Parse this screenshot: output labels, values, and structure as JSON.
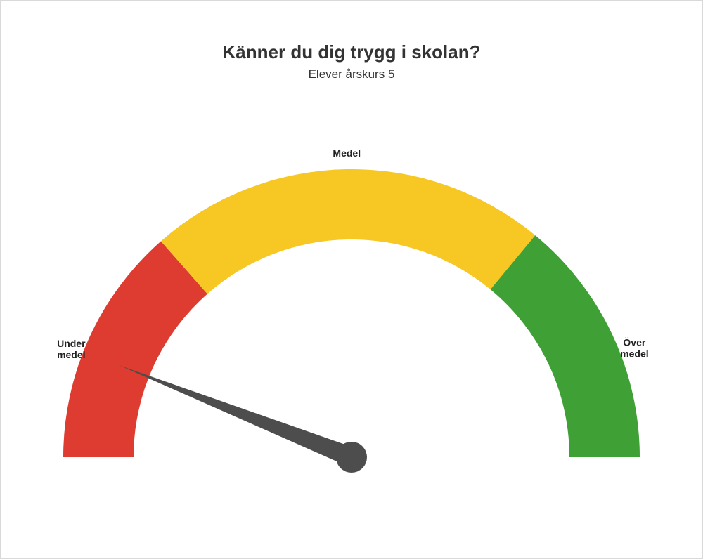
{
  "title": "Känner du dig trygg i skolan?",
  "subtitle": "Elever årskurs 5",
  "gauge": {
    "type": "gauge",
    "min": 0,
    "max": 100,
    "needle_value": 12,
    "needle_color": "#4d4d4d",
    "pivot_color": "#4d4d4d",
    "outer_radius": 410,
    "inner_radius": 310,
    "background_color": "#ffffff",
    "segments": [
      {
        "from": 0,
        "to": 27,
        "color": "#de3c31",
        "label": "Under\nmedel",
        "label_pos": "left"
      },
      {
        "from": 27,
        "to": 72,
        "color": "#f7c723",
        "label": "Medel",
        "label_pos": "top"
      },
      {
        "from": 72,
        "to": 100,
        "color": "#3fa036",
        "label": "Över\nmedel",
        "label_pos": "right"
      }
    ],
    "title_fontsize": 26,
    "subtitle_fontsize": 17,
    "label_fontsize": 14,
    "label_fontweight": 700,
    "label_color": "#222222"
  }
}
